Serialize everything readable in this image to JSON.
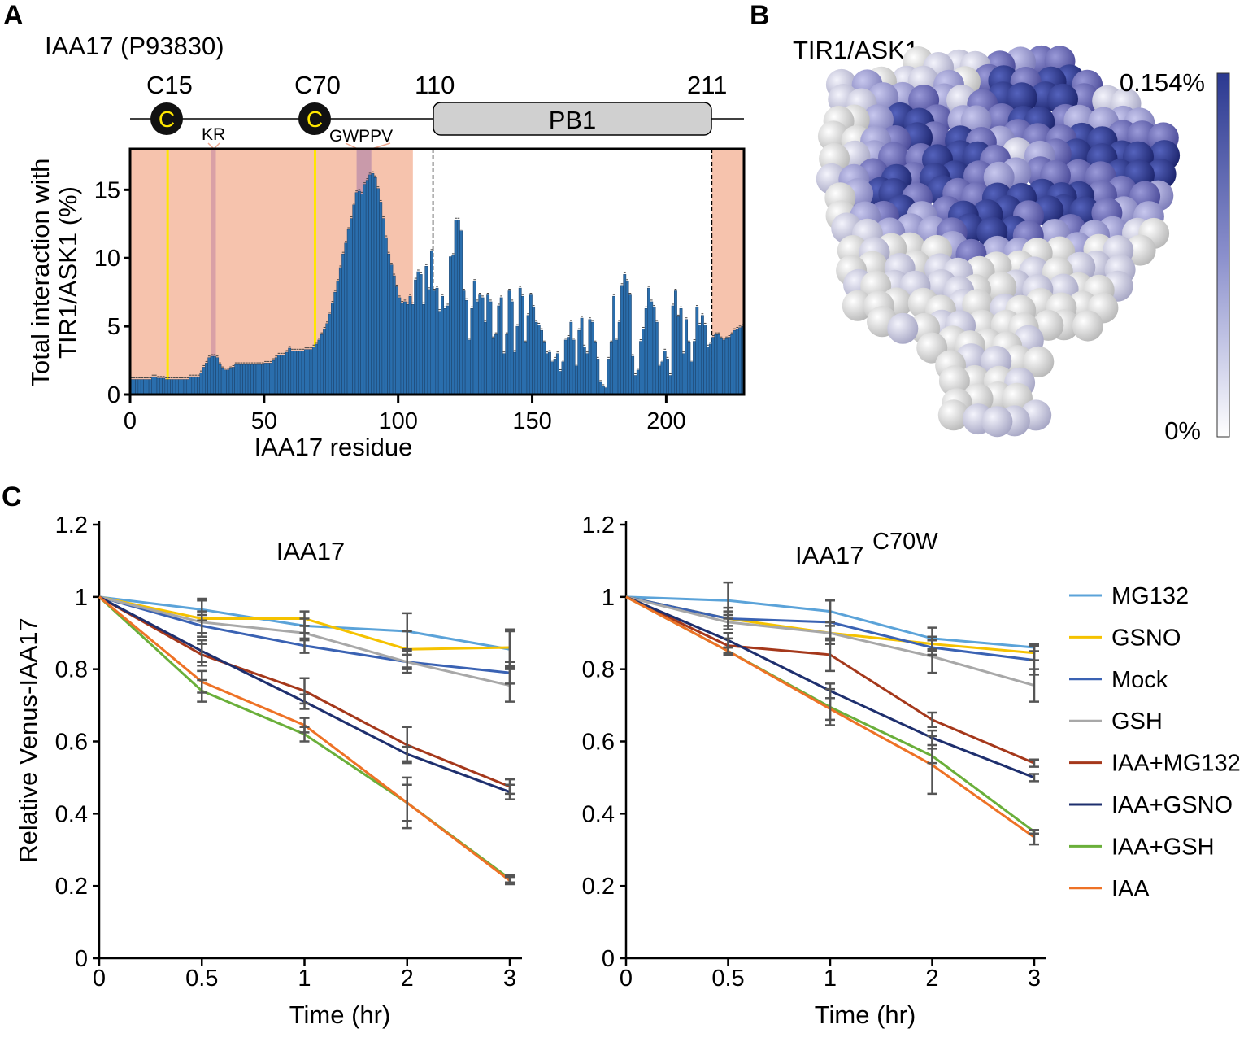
{
  "panel_labels": {
    "a": "A",
    "b": "B",
    "c": "C"
  },
  "domain_map": {
    "protein": "IAA17 (P93830)",
    "cys1_label": "C15",
    "cys2_label": "C70",
    "cys_symbol": "C",
    "start_label": "110",
    "end_label": "211",
    "domain_name": "PB1",
    "motif1": "KR",
    "motif2": "GWPPV",
    "cys_color": "#ffe600",
    "domain_fill": "#d0d0d0"
  },
  "panel_b": {
    "title": "TIR1/ASK1",
    "colorbar_max": "0.154%",
    "colorbar_min": "0%",
    "colorbar_high_color": "#2b3990",
    "colorbar_low_color": "#ffffff"
  },
  "chart_data": [
    {
      "type": "bar",
      "xlabel": "IAA17 residue",
      "ylabel_line1": "Total interaction with",
      "ylabel_line2": "TIR1/ASK1 (%)",
      "xlim": [
        0,
        229
      ],
      "ylim": [
        0,
        18
      ],
      "xticks": [
        "0",
        "50",
        "100",
        "150",
        "200"
      ],
      "yticks": [
        "0",
        "5",
        "10",
        "15"
      ],
      "bar_color": "#2a6ead",
      "shaded_color": "#f6c3ad",
      "shaded_regions": [
        [
          0,
          105.5
        ],
        [
          217,
          229
        ]
      ],
      "cysteine_lines": [
        14,
        69
      ],
      "motif_bands": [
        [
          30.3,
          32
        ],
        [
          84.5,
          90
        ]
      ],
      "dashed_lines": [
        113,
        217
      ],
      "values": [
        1.1,
        1.1,
        1.1,
        1.1,
        1.1,
        1.1,
        1.1,
        1.1,
        1.3,
        1.3,
        1.2,
        1.2,
        1.2,
        1.1,
        1.1,
        1.1,
        1.1,
        1.1,
        1.1,
        1.1,
        1.1,
        1.1,
        1.3,
        1.3,
        1.3,
        1.3,
        1.6,
        2.0,
        2.3,
        2.7,
        2.8,
        2.8,
        2.7,
        2.2,
        1.9,
        1.8,
        1.8,
        1.9,
        2.0,
        2.2,
        2.2,
        2.2,
        2.2,
        2.2,
        2.2,
        2.2,
        2.2,
        2.2,
        2.2,
        2.2,
        2.3,
        2.3,
        2.3,
        2.5,
        2.7,
        2.9,
        2.9,
        2.9,
        3.1,
        3.4,
        3.2,
        3.2,
        3.2,
        3.2,
        3.2,
        3.3,
        3.3,
        3.3,
        3.5,
        3.7,
        4.0,
        4.4,
        4.8,
        5.2,
        5.9,
        6.7,
        7.5,
        8.3,
        9.3,
        10.3,
        11.1,
        12.1,
        12.9,
        13.9,
        14.8,
        14.9,
        14.7,
        15.4,
        15.7,
        16.1,
        16.2,
        15.9,
        15.1,
        14.1,
        12.9,
        11.5,
        10.3,
        9.5,
        8.7,
        7.9,
        7.1,
        6.7,
        6.8,
        6.6,
        7.2,
        6.6,
        8.4,
        9.0,
        8.8,
        6.6,
        9.4,
        7.7,
        10.5,
        7.6,
        7.8,
        6.1,
        7.2,
        6.3,
        6.5,
        10.1,
        10.2,
        12.8,
        12.8,
        12.0,
        7.6,
        6.9,
        4.0,
        6.3,
        8.3,
        6.8,
        7.3,
        7.1,
        5.3,
        7.3,
        6.8,
        4.1,
        4.4,
        6.5,
        7.1,
        3.0,
        4.4,
        7.6,
        6.8,
        3.1,
        5.0,
        7.8,
        7.2,
        3.8,
        5.8,
        7.3,
        6.4,
        5.3,
        5.1,
        4.7,
        3.8,
        3.0,
        3.1,
        2.4,
        2.6,
        3.0,
        1.7,
        2.4,
        4.0,
        4.2,
        5.3,
        4.0,
        2.1,
        4.7,
        5.6,
        3.5,
        3.0,
        5.5,
        5.3,
        3.8,
        2.6,
        0.9,
        0.6,
        0.5,
        2.6,
        3.8,
        7.2,
        4.0,
        5.3,
        8.0,
        8.8,
        8.3,
        7.3,
        2.8,
        1.4,
        1.8,
        3.9,
        4.8,
        6.3,
        7.8,
        6.8,
        6.4,
        5.3,
        2.1,
        2.4,
        3.2,
        2.6,
        1.4,
        6.5,
        7.6,
        5.7,
        6.3,
        3.0,
        5.5,
        3.8,
        2.4,
        3.9,
        6.4,
        5.1,
        5.8,
        5.1,
        3.5,
        3.7,
        4.2,
        4.4,
        4.4,
        4.1,
        4.0,
        4.1,
        4.2,
        4.4,
        4.7,
        4.8,
        4.9,
        5.0
      ]
    },
    {
      "type": "line",
      "title": "IAA17",
      "title_sup": "",
      "xlabel": "Time (hr)",
      "ylabel": "Relative Venus-IAA17",
      "categories": [
        "0",
        "0.5",
        "1",
        "2",
        "3"
      ],
      "ylim": [
        0,
        1.2
      ],
      "yticks": [
        "0",
        "0.2",
        "0.4",
        "0.6",
        "0.8",
        "1",
        "1.2"
      ],
      "series": [
        {
          "name": "MG132",
          "color": "#5ba3d9",
          "values": [
            1,
            0.965,
            0.92,
            0.905,
            0.855
          ],
          "err": [
            0,
            0.03,
            0.02,
            0.05,
            0.05
          ]
        },
        {
          "name": "GSNO",
          "color": "#f5c200",
          "values": [
            1,
            0.94,
            0.94,
            0.855,
            0.86
          ],
          "err": [
            0,
            0.05,
            0.02,
            0.05,
            0.05
          ]
        },
        {
          "name": "Mock",
          "color": "#3a62b3",
          "values": [
            1,
            0.92,
            0.865,
            0.82,
            0.79
          ],
          "err": [
            0,
            0.03,
            0.02,
            0.03,
            0.03
          ]
        },
        {
          "name": "GSH",
          "color": "#a8a8a8",
          "values": [
            1,
            0.93,
            0.9,
            0.82,
            0.755
          ],
          "err": [
            0,
            0.03,
            0.02,
            0.02,
            0.045
          ]
        },
        {
          "name": "IAA+MG132",
          "color": "#a5381b",
          "values": [
            1,
            0.84,
            0.74,
            0.59,
            0.475
          ],
          "err": [
            0,
            0.03,
            0.035,
            0.05,
            0.02
          ]
        },
        {
          "name": "IAA+GSNO",
          "color": "#1e2f6e",
          "values": [
            1,
            0.85,
            0.71,
            0.565,
            0.46
          ],
          "err": [
            0,
            0.03,
            0.02,
            0.02,
            0.02
          ]
        },
        {
          "name": "IAA+GSH",
          "color": "#6aaf3a",
          "values": [
            1,
            0.74,
            0.62,
            0.43,
            0.22
          ],
          "err": [
            0,
            0.03,
            0.02,
            0.05,
            0.01
          ]
        },
        {
          "name": "IAA",
          "color": "#ee7226",
          "values": [
            1,
            0.765,
            0.645,
            0.43,
            0.215
          ],
          "err": [
            0,
            0.03,
            0.02,
            0.07,
            0.01
          ]
        }
      ]
    },
    {
      "type": "line",
      "title": "IAA17",
      "title_sup": "C70W",
      "xlabel": "Time (hr)",
      "categories": [
        "0",
        "0.5",
        "1",
        "2",
        "3"
      ],
      "ylim": [
        0,
        1.2
      ],
      "yticks": [
        "0",
        "0.2",
        "0.4",
        "0.6",
        "0.8",
        "1",
        "1.2"
      ],
      "legend": "right",
      "series": [
        {
          "name": "MG132",
          "color": "#5ba3d9",
          "values": [
            1,
            0.99,
            0.96,
            0.885,
            0.86
          ],
          "err": [
            0,
            0.05,
            0.03,
            0.03,
            0.01
          ]
        },
        {
          "name": "GSNO",
          "color": "#f5c200",
          "values": [
            1,
            0.94,
            0.9,
            0.87,
            0.845
          ],
          "err": [
            0,
            0.03,
            0.03,
            0.02,
            0.02
          ]
        },
        {
          "name": "Mock",
          "color": "#3a62b3",
          "values": [
            1,
            0.94,
            0.93,
            0.86,
            0.825
          ],
          "err": [
            0,
            0.02,
            0.06,
            0.02,
            0.04
          ]
        },
        {
          "name": "GSH",
          "color": "#a8a8a8",
          "values": [
            1,
            0.93,
            0.9,
            0.835,
            0.755
          ],
          "err": [
            0,
            0.02,
            0.02,
            0.045,
            0.045
          ]
        },
        {
          "name": "IAA+MG132",
          "color": "#a5381b",
          "values": [
            1,
            0.865,
            0.84,
            0.66,
            0.54
          ],
          "err": [
            0,
            0.02,
            0.045,
            0.02,
            0.01
          ]
        },
        {
          "name": "IAA+GSNO",
          "color": "#1e2f6e",
          "values": [
            1,
            0.88,
            0.74,
            0.61,
            0.5
          ],
          "err": [
            0,
            0.02,
            0.02,
            0.02,
            0.01
          ]
        },
        {
          "name": "IAA+GSH",
          "color": "#6aaf3a",
          "values": [
            1,
            0.85,
            0.695,
            0.56,
            0.35
          ],
          "err": [
            0,
            0.01,
            0.05,
            0.02,
            0.005
          ]
        },
        {
          "name": "IAA",
          "color": "#ee7226",
          "values": [
            1,
            0.85,
            0.69,
            0.535,
            0.335
          ],
          "err": [
            0,
            0.01,
            0.03,
            0.08,
            0.02
          ]
        }
      ]
    }
  ]
}
